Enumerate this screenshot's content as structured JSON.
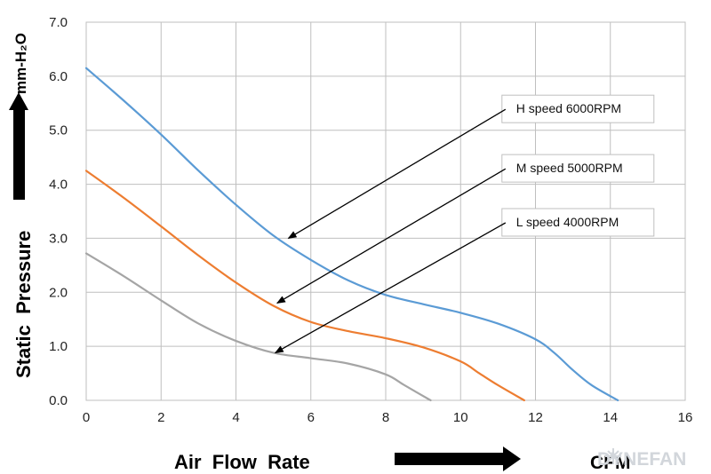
{
  "chart_data": {
    "type": "line",
    "xlim": [
      0,
      16
    ],
    "ylim": [
      0,
      7
    ],
    "x_ticks": [
      "0",
      "2",
      "4",
      "6",
      "8",
      "10",
      "12",
      "14",
      "16"
    ],
    "y_ticks": [
      "0.0",
      "1.0",
      "2.0",
      "3.0",
      "4.0",
      "5.0",
      "6.0",
      "7.0"
    ],
    "grid": true,
    "xlabel": "Air  Flow  Rate",
    "xunit": "CFM",
    "ylabel": "Static  Pressure",
    "yunit": "mm-H₂O",
    "series": [
      {
        "name": "H  speed  6000RPM",
        "color": "#5b9bd5",
        "points": [
          [
            0,
            6.15
          ],
          [
            1,
            5.55
          ],
          [
            2,
            4.92
          ],
          [
            3,
            4.25
          ],
          [
            4,
            3.62
          ],
          [
            5,
            3.05
          ],
          [
            6,
            2.6
          ],
          [
            7,
            2.22
          ],
          [
            8,
            1.95
          ],
          [
            9,
            1.78
          ],
          [
            10,
            1.62
          ],
          [
            11,
            1.42
          ],
          [
            12,
            1.13
          ],
          [
            12.5,
            0.88
          ],
          [
            13,
            0.56
          ],
          [
            13.5,
            0.28
          ],
          [
            14.2,
            0.0
          ]
        ]
      },
      {
        "name": "M  speed  5000RPM",
        "color": "#ed7d31",
        "points": [
          [
            0,
            4.25
          ],
          [
            1,
            3.75
          ],
          [
            2,
            3.22
          ],
          [
            3,
            2.68
          ],
          [
            4,
            2.18
          ],
          [
            5,
            1.75
          ],
          [
            6,
            1.45
          ],
          [
            7,
            1.28
          ],
          [
            8,
            1.15
          ],
          [
            9,
            0.98
          ],
          [
            10,
            0.72
          ],
          [
            10.5,
            0.5
          ],
          [
            11,
            0.28
          ],
          [
            11.7,
            0.0
          ]
        ]
      },
      {
        "name": "L  speed  4000RPM",
        "color": "#a5a5a5",
        "points": [
          [
            0,
            2.72
          ],
          [
            1,
            2.3
          ],
          [
            2,
            1.85
          ],
          [
            3,
            1.42
          ],
          [
            4,
            1.1
          ],
          [
            5,
            0.88
          ],
          [
            6,
            0.78
          ],
          [
            7,
            0.68
          ],
          [
            8,
            0.48
          ],
          [
            8.5,
            0.28
          ],
          [
            9.2,
            0.0
          ]
        ]
      }
    ],
    "callouts": [
      {
        "series": 0,
        "label": "H  speed  6000RPM",
        "box_x": 11.2,
        "box_y": 5.6,
        "target_x": 5.4,
        "target_y": 3.0
      },
      {
        "series": 1,
        "label": "M  speed  5000RPM",
        "box_x": 11.2,
        "box_y": 4.5,
        "target_x": 5.1,
        "target_y": 1.8
      },
      {
        "series": 2,
        "label": "L  speed  4000RPM",
        "box_x": 11.2,
        "box_y": 3.5,
        "target_x": 5.05,
        "target_y": 0.88
      }
    ]
  },
  "watermark": {
    "text": "DYNEFAN",
    "color": "#d2d6db"
  }
}
